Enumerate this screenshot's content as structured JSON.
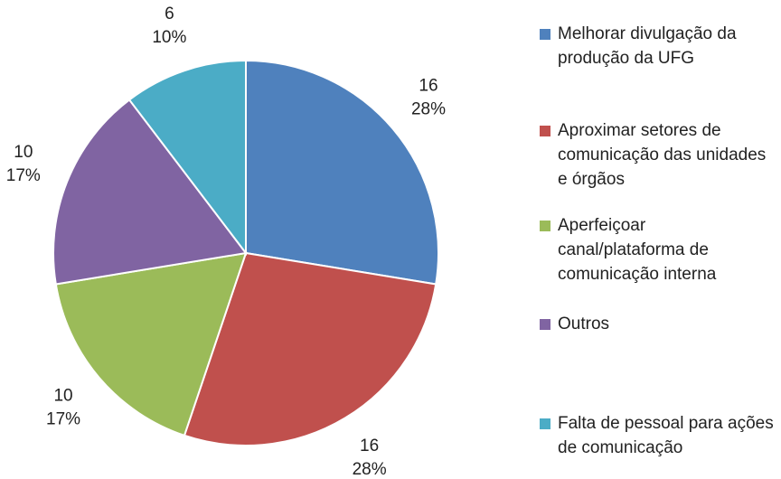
{
  "chart_data": {
    "type": "pie",
    "categories": [
      "Melhorar divulgação da produção da UFG",
      "Aproximar setores de comunicação das unidades e órgãos",
      "Aperfeiçoar canal/plataforma de comunicação interna",
      "Outros",
      "Falta de pessoal para ações de comunicação"
    ],
    "values": [
      16,
      16,
      10,
      10,
      6
    ],
    "percentages": [
      28,
      28,
      17,
      17,
      10
    ],
    "percentage_labels": [
      "28%",
      "28%",
      "17%",
      "17%",
      "10%"
    ],
    "colors": [
      "#4f81bd",
      "#c0504d",
      "#9bbb59",
      "#8064a2",
      "#4bacc6"
    ],
    "legend": "right"
  }
}
